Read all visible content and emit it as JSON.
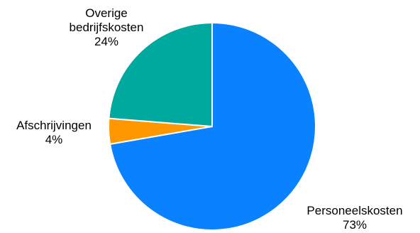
{
  "chart_data": {
    "type": "pie",
    "title": "",
    "slices": [
      {
        "label": "Personeelskosten",
        "value": 73,
        "value_label": "73%",
        "color": "#0A82FF"
      },
      {
        "label": "Afschrijvingen",
        "value": 4,
        "value_label": "4%",
        "color": "#FF9800"
      },
      {
        "label": "Overige bedrijfskosten",
        "value": 24,
        "value_label": "24%",
        "color": "#00A99D"
      }
    ],
    "start_angle": "12 o'clock",
    "direction": "clockwise",
    "slice_border_color": "#FFFFFF",
    "legend": "none"
  },
  "labels": {
    "overige_line1": "Overige",
    "overige_line2": "bedrijfskosten",
    "overige_pct": "24%",
    "afschr_name": "Afschrijvingen",
    "afschr_pct": "4%",
    "personeel_name": "Personeelskosten",
    "personeel_pct": "73%"
  }
}
